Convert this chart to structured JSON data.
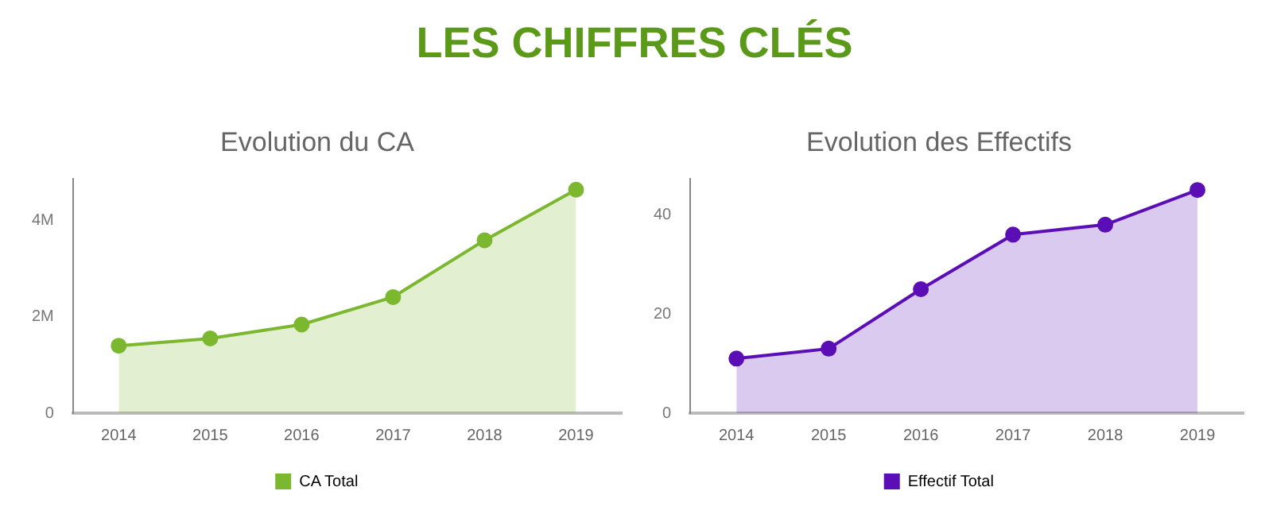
{
  "chart_data": [
    {
      "type": "other",
      "title": "LES CHIFFRES CLÉS"
    },
    {
      "type": "area",
      "title": "Evolution du CA",
      "categories": [
        "2014",
        "2015",
        "2016",
        "2017",
        "2018",
        "2019"
      ],
      "series": [
        {
          "name": "CA Total",
          "color": "#7cb82f",
          "values": [
            1400000,
            1550000,
            1840000,
            2410000,
            3590000,
            4640000
          ]
        }
      ],
      "ylim": [
        0,
        4870000
      ],
      "yticks": [
        0,
        {
          "value": 2000000,
          "label": "2M"
        },
        {
          "value": 4000000,
          "label": "4M"
        }
      ],
      "grid": false,
      "legend": "bottom",
      "marker": "circle"
    },
    {
      "type": "area",
      "title": "Evolution des Effectifs",
      "categories": [
        "2014",
        "2015",
        "2016",
        "2017",
        "2018",
        "2019"
      ],
      "series": [
        {
          "name": "Effectif Total",
          "color": "#5b0eb5",
          "values": [
            11,
            13,
            25,
            36,
            38,
            45
          ]
        }
      ],
      "ylim": [
        0,
        47.3
      ],
      "yticks": [
        0,
        20,
        40
      ],
      "grid": false,
      "legend": "bottom",
      "marker": "circle"
    }
  ]
}
